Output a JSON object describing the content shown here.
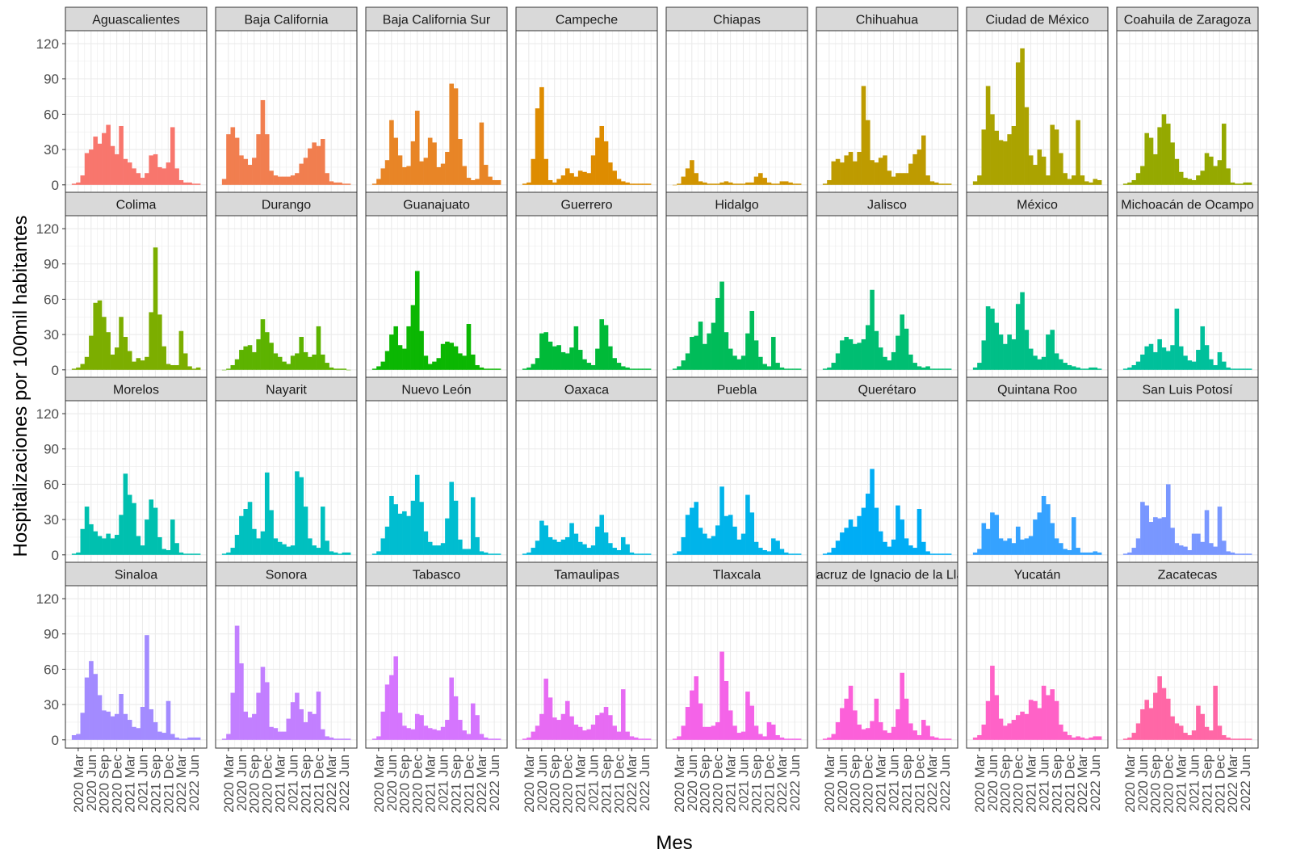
{
  "chart_data": {
    "type": "bar",
    "xlabel": "Mes",
    "ylabel": "Hospitalizaciones por 100mil habitantes",
    "ylim": [
      0,
      120
    ],
    "yticks": [
      0,
      30,
      60,
      90,
      120
    ],
    "xrange_months": [
      "2020-02",
      "2022-07"
    ],
    "xticks": [
      "2020 Mar",
      "2020 Jun",
      "2020 Sep",
      "2020 Dec",
      "2021 Mar",
      "2021 Jun",
      "2021 Sep",
      "2021 Dec",
      "2022 Mar",
      "2022 Jun"
    ],
    "layout": "facet_wrap 4 rows x 8 columns, x axis shared at bottom",
    "grid": true,
    "legend": "none",
    "months": [
      "2020-02",
      "2020-03",
      "2020-04",
      "2020-05",
      "2020-06",
      "2020-07",
      "2020-08",
      "2020-09",
      "2020-10",
      "2020-11",
      "2020-12",
      "2021-01",
      "2021-02",
      "2021-03",
      "2021-04",
      "2021-05",
      "2021-06",
      "2021-07",
      "2021-08",
      "2021-09",
      "2021-10",
      "2021-11",
      "2021-12",
      "2022-01",
      "2022-02",
      "2022-03",
      "2022-04",
      "2022-05",
      "2022-06",
      "2022-07"
    ],
    "panels": [
      {
        "name": "Aguascalientes",
        "color": "#F8766D",
        "values": [
          1,
          2,
          8,
          27,
          30,
          41,
          35,
          44,
          51,
          33,
          26,
          50,
          22,
          19,
          14,
          10,
          6,
          10,
          25,
          26,
          15,
          14,
          19,
          49,
          14,
          4,
          2,
          2,
          1,
          1
        ]
      },
      {
        "name": "Baja California",
        "color": "#F17E4F",
        "values": [
          5,
          43,
          49,
          40,
          25,
          22,
          17,
          23,
          43,
          72,
          43,
          12,
          8,
          7,
          7,
          7,
          8,
          10,
          18,
          23,
          31,
          36,
          33,
          39,
          10,
          3,
          2,
          2,
          1,
          1
        ]
      },
      {
        "name": "Baja California Sur",
        "color": "#E88526",
        "values": [
          1,
          5,
          14,
          21,
          55,
          40,
          25,
          15,
          16,
          37,
          63,
          20,
          23,
          40,
          36,
          15,
          18,
          28,
          86,
          82,
          39,
          16,
          6,
          4,
          5,
          53,
          17,
          7,
          4,
          4
        ]
      },
      {
        "name": "Campeche",
        "color": "#DE8C00",
        "values": [
          1,
          2,
          22,
          65,
          83,
          22,
          4,
          2,
          5,
          8,
          14,
          10,
          7,
          12,
          11,
          10,
          25,
          40,
          50,
          37,
          19,
          12,
          5,
          3,
          2,
          1,
          1,
          1,
          1,
          1
        ]
      },
      {
        "name": "Chiapas",
        "color": "#D09400",
        "values": [
          0,
          1,
          7,
          14,
          21,
          10,
          3,
          2,
          1,
          1,
          1,
          2,
          3,
          2,
          1,
          1,
          1,
          2,
          2,
          7,
          10,
          6,
          2,
          1,
          1,
          3,
          3,
          2,
          1,
          1
        ]
      },
      {
        "name": "Chihuahua",
        "color": "#BE9B00",
        "values": [
          1,
          4,
          20,
          22,
          19,
          25,
          28,
          20,
          28,
          84,
          55,
          21,
          19,
          23,
          25,
          12,
          7,
          10,
          10,
          10,
          18,
          26,
          30,
          42,
          8,
          3,
          2,
          1,
          1,
          1
        ]
      },
      {
        "name": "Ciudad de México",
        "color": "#ABA300",
        "values": [
          3,
          8,
          47,
          84,
          60,
          46,
          38,
          37,
          43,
          50,
          104,
          116,
          66,
          25,
          17,
          30,
          24,
          8,
          51,
          47,
          27,
          10,
          5,
          8,
          55,
          8,
          3,
          2,
          5,
          4
        ]
      },
      {
        "name": "Coahuila de Zaragoza",
        "color": "#95A900",
        "values": [
          1,
          2,
          4,
          10,
          16,
          44,
          40,
          26,
          49,
          60,
          52,
          36,
          22,
          11,
          6,
          5,
          4,
          8,
          12,
          27,
          24,
          16,
          21,
          52,
          14,
          2,
          1,
          1,
          2,
          2
        ]
      },
      {
        "name": "Colima",
        "color": "#7CAE00",
        "values": [
          1,
          2,
          5,
          11,
          29,
          57,
          59,
          45,
          32,
          13,
          19,
          45,
          28,
          16,
          7,
          10,
          8,
          11,
          49,
          104,
          47,
          20,
          5,
          4,
          4,
          33,
          14,
          3,
          1,
          2
        ]
      },
      {
        "name": "Durango",
        "color": "#5DB300",
        "values": [
          0,
          1,
          4,
          9,
          17,
          20,
          21,
          15,
          26,
          43,
          32,
          23,
          14,
          11,
          7,
          5,
          12,
          14,
          28,
          15,
          11,
          13,
          37,
          13,
          6,
          2,
          1,
          1,
          1,
          0
        ]
      },
      {
        "name": "Guanajuato",
        "color": "#0BB702",
        "values": [
          1,
          3,
          7,
          16,
          30,
          37,
          21,
          18,
          37,
          55,
          84,
          33,
          12,
          5,
          7,
          10,
          22,
          24,
          23,
          20,
          14,
          12,
          39,
          13,
          4,
          2,
          1,
          1,
          1,
          1
        ]
      },
      {
        "name": "Guerrero",
        "color": "#00BA38",
        "values": [
          1,
          2,
          5,
          10,
          31,
          32,
          24,
          20,
          21,
          15,
          14,
          19,
          37,
          17,
          9,
          6,
          4,
          18,
          43,
          38,
          20,
          10,
          6,
          3,
          2,
          1,
          1,
          1,
          1,
          1
        ]
      },
      {
        "name": "Hidalgo",
        "color": "#00BC59",
        "values": [
          1,
          3,
          8,
          14,
          28,
          29,
          41,
          22,
          31,
          40,
          61,
          75,
          32,
          18,
          12,
          9,
          12,
          31,
          50,
          25,
          11,
          5,
          3,
          28,
          6,
          2,
          1,
          1,
          1,
          1
        ]
      },
      {
        "name": "Jalisco",
        "color": "#00BE72",
        "values": [
          1,
          2,
          6,
          14,
          25,
          28,
          26,
          22,
          23,
          26,
          38,
          68,
          33,
          19,
          11,
          8,
          15,
          29,
          47,
          35,
          13,
          6,
          3,
          2,
          3,
          1,
          1,
          1,
          1,
          1
        ]
      },
      {
        "name": "México",
        "color": "#00BF87",
        "values": [
          2,
          6,
          25,
          54,
          52,
          40,
          30,
          22,
          30,
          26,
          56,
          66,
          34,
          18,
          12,
          9,
          11,
          30,
          34,
          14,
          9,
          6,
          4,
          3,
          2,
          1,
          1,
          2,
          2,
          1
        ]
      },
      {
        "name": "Michoacán de Ocampo",
        "color": "#00C09B",
        "values": [
          1,
          2,
          4,
          7,
          13,
          20,
          22,
          15,
          26,
          19,
          16,
          21,
          52,
          20,
          12,
          8,
          7,
          17,
          37,
          21,
          9,
          4,
          15,
          7,
          2,
          1,
          1,
          1,
          1,
          1
        ]
      },
      {
        "name": "Morelos",
        "color": "#00C0AF",
        "values": [
          1,
          2,
          22,
          41,
          26,
          20,
          16,
          14,
          18,
          14,
          17,
          34,
          69,
          51,
          44,
          16,
          8,
          30,
          47,
          40,
          15,
          5,
          4,
          30,
          10,
          2,
          1,
          1,
          1,
          1
        ]
      },
      {
        "name": "Nayarit",
        "color": "#00C0BF",
        "values": [
          1,
          2,
          6,
          17,
          33,
          39,
          45,
          22,
          14,
          20,
          70,
          38,
          14,
          11,
          9,
          7,
          8,
          71,
          66,
          41,
          14,
          8,
          6,
          41,
          12,
          3,
          2,
          1,
          2,
          2
        ]
      },
      {
        "name": "Nuevo León",
        "color": "#00BDD0",
        "values": [
          1,
          3,
          14,
          24,
          50,
          43,
          35,
          37,
          33,
          46,
          68,
          45,
          20,
          11,
          8,
          8,
          10,
          31,
          62,
          46,
          13,
          5,
          5,
          49,
          15,
          3,
          2,
          1,
          1,
          1
        ]
      },
      {
        "name": "Oaxaca",
        "color": "#00B9DE",
        "values": [
          1,
          2,
          6,
          12,
          29,
          25,
          15,
          13,
          11,
          13,
          15,
          27,
          18,
          11,
          9,
          6,
          8,
          24,
          34,
          19,
          10,
          6,
          4,
          15,
          9,
          2,
          1,
          1,
          1,
          1
        ]
      },
      {
        "name": "Puebla",
        "color": "#00B4EA",
        "values": [
          1,
          3,
          15,
          34,
          40,
          45,
          23,
          18,
          14,
          16,
          25,
          58,
          33,
          34,
          24,
          13,
          18,
          51,
          36,
          11,
          6,
          4,
          3,
          14,
          12,
          5,
          2,
          1,
          1,
          1
        ]
      },
      {
        "name": "Querétaro",
        "color": "#00ADF5",
        "values": [
          1,
          2,
          6,
          12,
          19,
          23,
          30,
          24,
          33,
          40,
          52,
          73,
          40,
          20,
          11,
          7,
          13,
          42,
          30,
          14,
          8,
          6,
          39,
          11,
          3,
          1,
          1,
          1,
          1,
          1
        ]
      },
      {
        "name": "Quintana Roo",
        "color": "#35A2FF",
        "values": [
          2,
          5,
          27,
          22,
          36,
          34,
          14,
          12,
          14,
          10,
          24,
          13,
          14,
          16,
          30,
          36,
          50,
          43,
          27,
          14,
          10,
          5,
          4,
          32,
          6,
          2,
          2,
          2,
          3,
          2
        ]
      },
      {
        "name": "San Luis Potosí",
        "color": "#7997FF",
        "values": [
          1,
          2,
          6,
          14,
          45,
          42,
          28,
          32,
          31,
          32,
          60,
          23,
          10,
          8,
          7,
          4,
          18,
          18,
          11,
          38,
          10,
          7,
          41,
          12,
          3,
          2,
          1,
          1,
          1,
          1
        ]
      },
      {
        "name": "Sinaloa",
        "color": "#A38BFF",
        "values": [
          4,
          5,
          23,
          53,
          67,
          56,
          38,
          25,
          24,
          20,
          22,
          39,
          22,
          17,
          11,
          10,
          28,
          89,
          26,
          15,
          7,
          6,
          33,
          5,
          2,
          1,
          1,
          2,
          2,
          2
        ]
      },
      {
        "name": "Sonora",
        "color": "#C27FFF",
        "values": [
          1,
          5,
          40,
          97,
          65,
          24,
          19,
          22,
          40,
          62,
          49,
          11,
          10,
          7,
          7,
          18,
          32,
          40,
          26,
          15,
          24,
          22,
          41,
          9,
          3,
          2,
          1,
          1,
          1,
          1
        ]
      },
      {
        "name": "Tabasco",
        "color": "#D575FE",
        "values": [
          1,
          3,
          24,
          47,
          55,
          71,
          23,
          12,
          10,
          9,
          22,
          21,
          12,
          10,
          9,
          8,
          11,
          17,
          53,
          37,
          17,
          8,
          5,
          31,
          21,
          5,
          2,
          1,
          1,
          1
        ]
      },
      {
        "name": "Tamaulipas",
        "color": "#E76BF3",
        "values": [
          1,
          2,
          7,
          12,
          22,
          52,
          36,
          19,
          17,
          22,
          33,
          20,
          13,
          11,
          8,
          9,
          13,
          21,
          23,
          28,
          21,
          12,
          7,
          43,
          7,
          3,
          2,
          1,
          1,
          1
        ]
      },
      {
        "name": "Tlaxcala",
        "color": "#F463E8",
        "values": [
          1,
          3,
          12,
          28,
          42,
          54,
          31,
          11,
          11,
          12,
          15,
          75,
          50,
          25,
          12,
          6,
          7,
          41,
          29,
          12,
          5,
          3,
          15,
          13,
          4,
          2,
          1,
          1,
          1,
          1
        ]
      },
      {
        "name": "Veracruz de Ignacio de la Llave",
        "color": "#FC60D9",
        "values": [
          1,
          2,
          5,
          15,
          27,
          35,
          46,
          25,
          13,
          9,
          10,
          16,
          35,
          15,
          8,
          6,
          11,
          26,
          57,
          35,
          14,
          8,
          4,
          17,
          12,
          3,
          2,
          1,
          1,
          1
        ]
      },
      {
        "name": "Yucatán",
        "color": "#FF62C7",
        "values": [
          2,
          4,
          13,
          33,
          63,
          38,
          18,
          12,
          14,
          17,
          21,
          24,
          22,
          34,
          33,
          27,
          46,
          38,
          43,
          33,
          13,
          7,
          4,
          2,
          3,
          2,
          1,
          2,
          3,
          3
        ]
      },
      {
        "name": "Zacatecas",
        "color": "#FF67A6",
        "values": [
          1,
          2,
          6,
          14,
          26,
          34,
          27,
          40,
          54,
          44,
          35,
          20,
          14,
          12,
          6,
          4,
          8,
          29,
          22,
          11,
          8,
          46,
          12,
          4,
          2,
          1,
          1,
          1,
          1,
          1
        ]
      }
    ]
  }
}
